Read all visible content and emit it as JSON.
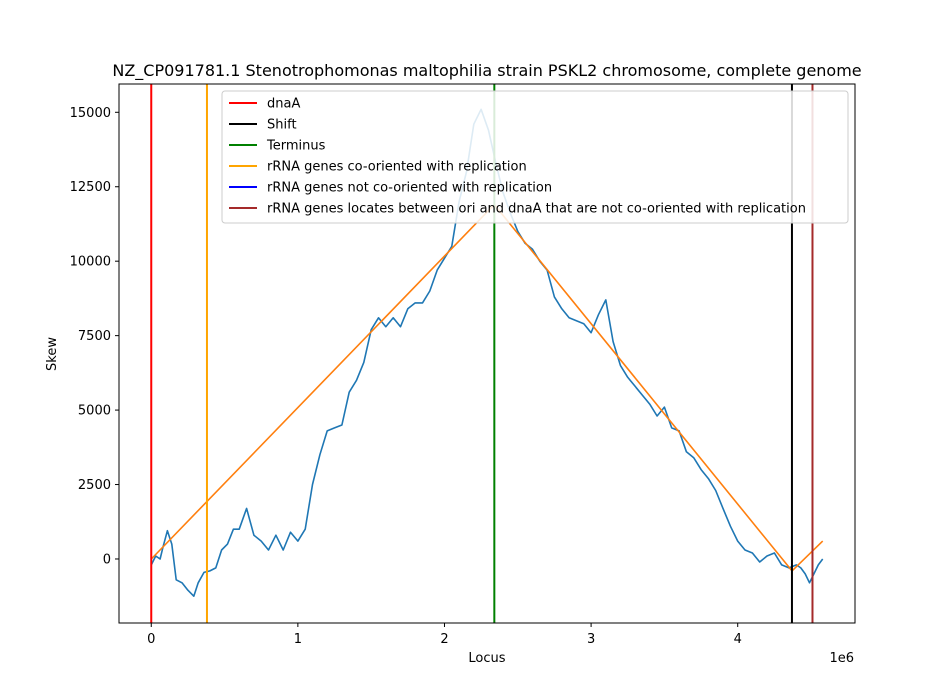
{
  "chart_data": {
    "type": "line",
    "title": "NZ_CP091781.1 Stenotrophomonas maltophilia strain PSKL2 chromosome, complete genome",
    "xlabel": "Locus",
    "ylabel": "Skew",
    "x_offset_label": "1e6",
    "xlim": [
      -220000,
      4800000
    ],
    "ylim": [
      -2150,
      15950
    ],
    "xticks": [
      0,
      1000000,
      2000000,
      3000000,
      4000000
    ],
    "xtick_labels": [
      "0",
      "1",
      "2",
      "3",
      "4"
    ],
    "yticks": [
      0,
      2500,
      5000,
      7500,
      10000,
      12500,
      15000
    ],
    "ytick_labels": [
      "0",
      "2500",
      "5000",
      "7500",
      "10000",
      "12500",
      "15000"
    ],
    "grid": false,
    "legend_position": "top-right",
    "vertical_lines": [
      {
        "name": "dnaA",
        "x": 0,
        "color": "#ff0000"
      },
      {
        "name": "rRNA genes co-oriented with replication",
        "x": 380000,
        "color": "#ffa500"
      },
      {
        "name": "Terminus",
        "x": 2340000,
        "color": "#008000"
      },
      {
        "name": "Shift",
        "x": 4370000,
        "color": "#000000"
      },
      {
        "name": "rRNA genes locates between ori and dnaA that are not co-oriented with replication",
        "x": 4510000,
        "color": "#a52a2a"
      }
    ],
    "legend": [
      {
        "label": "dnaA",
        "color": "#ff0000"
      },
      {
        "label": "Shift",
        "color": "#000000"
      },
      {
        "label": "Terminus",
        "color": "#008000"
      },
      {
        "label": "rRNA genes co-oriented with replication",
        "color": "#ffa500"
      },
      {
        "label": "rRNA genes not co-oriented with replication",
        "color": "#0000ff"
      },
      {
        "label": "rRNA genes locates between ori and dnaA that are not co-oriented with replication",
        "color": "#a52a2a"
      }
    ],
    "series": [
      {
        "color": "#1f77b4",
        "x": [
          0,
          30000,
          60000,
          80000,
          110000,
          140000,
          170000,
          210000,
          250000,
          290000,
          320000,
          360000,
          400000,
          440000,
          480000,
          520000,
          560000,
          600000,
          650000,
          700000,
          750000,
          800000,
          850000,
          900000,
          950000,
          1000000,
          1050000,
          1100000,
          1150000,
          1200000,
          1250000,
          1300000,
          1350000,
          1400000,
          1450000,
          1500000,
          1550000,
          1600000,
          1650000,
          1700000,
          1750000,
          1800000,
          1850000,
          1900000,
          1950000,
          2000000,
          2050000,
          2100000,
          2150000,
          2200000,
          2250000,
          2300000,
          2350000,
          2400000,
          2450000,
          2500000,
          2550000,
          2600000,
          2650000,
          2700000,
          2750000,
          2800000,
          2850000,
          2900000,
          2950000,
          3000000,
          3050000,
          3100000,
          3150000,
          3200000,
          3250000,
          3300000,
          3350000,
          3400000,
          3450000,
          3500000,
          3550000,
          3600000,
          3650000,
          3700000,
          3750000,
          3800000,
          3850000,
          3900000,
          3950000,
          4000000,
          4050000,
          4100000,
          4150000,
          4200000,
          4250000,
          4300000,
          4350000,
          4400000,
          4430000,
          4460000,
          4490000,
          4520000,
          4550000,
          4580000
        ],
        "y": [
          -200,
          100,
          0,
          400,
          950,
          500,
          -700,
          -800,
          -1050,
          -1250,
          -800,
          -450,
          -400,
          -300,
          300,
          500,
          1000,
          1000,
          1700,
          800,
          600,
          300,
          800,
          300,
          900,
          600,
          1000,
          2500,
          3500,
          4300,
          4400,
          4500,
          5600,
          6000,
          6600,
          7700,
          8100,
          7800,
          8100,
          7800,
          8400,
          8600,
          8600,
          9000,
          9700,
          10100,
          10500,
          12000,
          13000,
          14600,
          15100,
          14400,
          13300,
          12300,
          11600,
          11000,
          10600,
          10400,
          10000,
          9700,
          8800,
          8400,
          8100,
          8000,
          7900,
          7600,
          8200,
          8700,
          7300,
          6500,
          6100,
          5800,
          5500,
          5200,
          4800,
          5100,
          4400,
          4300,
          3600,
          3400,
          3000,
          2700,
          2300,
          1700,
          1100,
          600,
          300,
          200,
          -100,
          100,
          200,
          -200,
          -300,
          -200,
          -300,
          -500,
          -800,
          -500,
          -200,
          0
        ]
      },
      {
        "color": "#ff7f0e",
        "x": [
          0,
          2340000,
          4370000,
          4580000
        ],
        "y": [
          0,
          11900,
          -400,
          600
        ]
      }
    ]
  }
}
